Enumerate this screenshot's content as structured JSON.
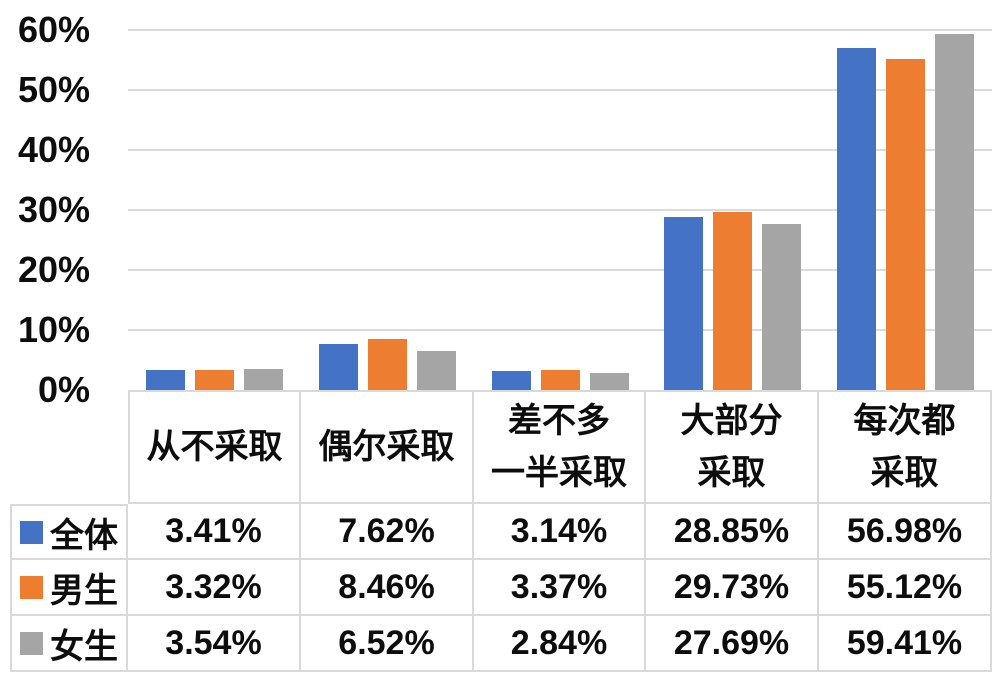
{
  "colors": {
    "series_all": "#4472C4",
    "series_male": "#ED7D31",
    "series_female": "#A5A5A5",
    "gridline": "#DBDBDB",
    "table_border": "#D9D9D9",
    "text": "#0D0D0D",
    "background": "#FFFFFF"
  },
  "y_axis": {
    "ticks": [
      "60%",
      "50%",
      "40%",
      "30%",
      "20%",
      "10%",
      "0%"
    ],
    "max_percent": 60
  },
  "chart_data": {
    "type": "bar",
    "title": "",
    "xlabel": "",
    "ylabel": "",
    "ylim": [
      0,
      60
    ],
    "grid": true,
    "legend_position": "data-table-left-column",
    "categories": [
      "从不采取",
      "偶尔采取",
      "差不多一半采取",
      "大部分采取",
      "每次都采取"
    ],
    "category_label_lines": [
      [
        "从不采取"
      ],
      [
        "偶尔采取"
      ],
      [
        "差不多",
        "一半采取"
      ],
      [
        "大部分",
        "采取"
      ],
      [
        "每次都",
        "采取"
      ]
    ],
    "series": [
      {
        "name": "全体",
        "color": "#4472C4",
        "values": [
          3.41,
          7.62,
          3.14,
          28.85,
          56.98
        ],
        "labels": [
          "3.41%",
          "7.62%",
          "3.14%",
          "28.85%",
          "56.98%"
        ]
      },
      {
        "name": "男生",
        "color": "#ED7D31",
        "values": [
          3.32,
          8.46,
          3.37,
          29.73,
          55.12
        ],
        "labels": [
          "3.32%",
          "8.46%",
          "3.37%",
          "29.73%",
          "55.12%"
        ]
      },
      {
        "name": "女生",
        "color": "#A5A5A5",
        "values": [
          3.54,
          6.52,
          2.84,
          27.69,
          59.41
        ],
        "labels": [
          "3.54%",
          "6.52%",
          "2.84%",
          "27.69%",
          "59.41%"
        ]
      }
    ]
  }
}
